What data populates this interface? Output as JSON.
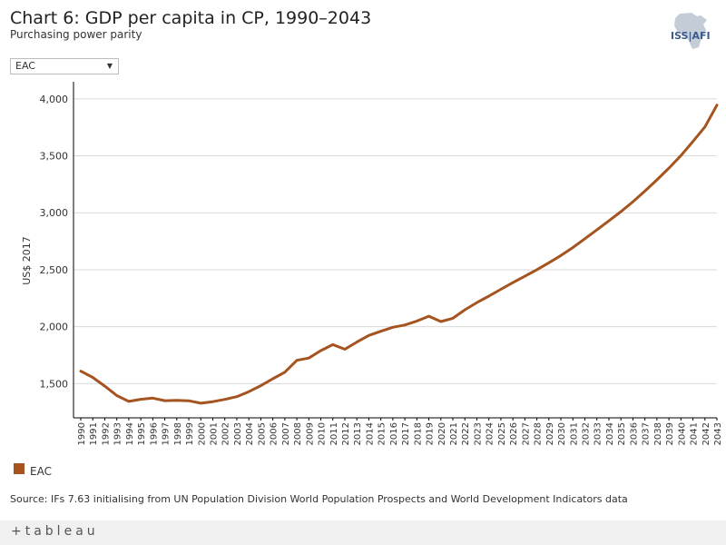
{
  "header": {
    "title": "Chart 6: GDP per capita in CP, 1990–2043",
    "subtitle": "Purchasing power parity",
    "logo_text": "ISS|AFI"
  },
  "filter": {
    "selected": "EAC",
    "caret": "▼"
  },
  "legend": {
    "label": "EAC"
  },
  "source": "Source: IFs 7.63 initialising from UN Population Division World Population Prospects and World Development Indicators data",
  "footer": {
    "brand": "+tableau"
  },
  "colors": {
    "series": "#a5541f",
    "grid": "#d9d9d9",
    "axis": "#000000"
  },
  "chart_data": {
    "type": "line",
    "title": "Chart 6: GDP per capita in CP, 1990–2043",
    "subtitle": "Purchasing power parity",
    "xlabel": "",
    "ylabel": "US$ 2017",
    "ylim": [
      1200,
      4150
    ],
    "yticks": [
      1500,
      2000,
      2500,
      3000,
      3500,
      4000
    ],
    "ytick_labels": [
      "1,500",
      "2,000",
      "2,500",
      "3,000",
      "3,500",
      "4,000"
    ],
    "grid": "horizontal",
    "legend_position": "bottom-left",
    "x": [
      1990,
      1991,
      1992,
      1993,
      1994,
      1995,
      1996,
      1997,
      1998,
      1999,
      2000,
      2001,
      2002,
      2003,
      2004,
      2005,
      2006,
      2007,
      2008,
      2009,
      2010,
      2011,
      2012,
      2013,
      2014,
      2015,
      2016,
      2017,
      2018,
      2019,
      2020,
      2021,
      2022,
      2023,
      2024,
      2025,
      2026,
      2027,
      2028,
      2029,
      2030,
      2031,
      2032,
      2033,
      2034,
      2035,
      2036,
      2037,
      2038,
      2039,
      2040,
      2041,
      2042,
      2043
    ],
    "series": [
      {
        "name": "EAC",
        "values": [
          1610,
          1555,
          1478,
          1395,
          1344,
          1363,
          1373,
          1351,
          1354,
          1350,
          1328,
          1342,
          1362,
          1386,
          1430,
          1482,
          1543,
          1600,
          1705,
          1725,
          1790,
          1843,
          1802,
          1865,
          1923,
          1960,
          1995,
          2015,
          2049,
          2092,
          2045,
          2074,
          2148,
          2212,
          2268,
          2328,
          2387,
          2443,
          2500,
          2561,
          2625,
          2695,
          2772,
          2850,
          2929,
          3010,
          3097,
          3190,
          3289,
          3392,
          3502,
          3625,
          3754,
          3945
        ]
      }
    ]
  }
}
